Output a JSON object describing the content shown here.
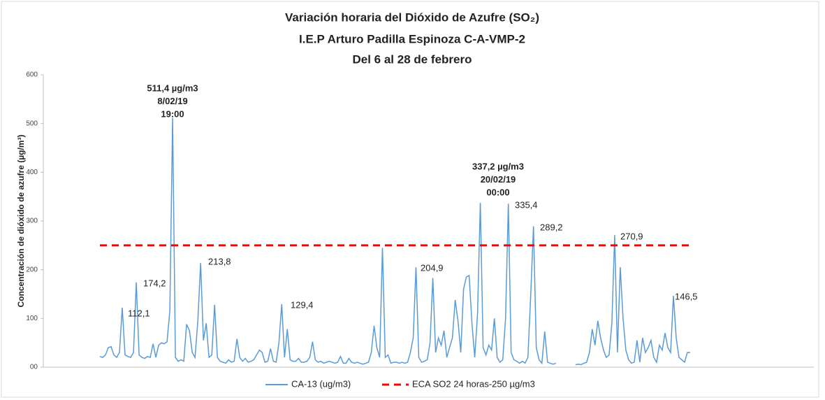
{
  "chart_data": {
    "type": "line",
    "title": [
      "Variación horaria del Dióxido de Azufre (SO₂)",
      "I.E.P Arturo Padilla Espinoza C-A-VMP-2",
      "Del 6 al 28 de febrero"
    ],
    "y_label": "Concentración de dióxido de azufre (µg/m³)",
    "ylim": [
      0,
      600
    ],
    "yticks": [
      {
        "value": 0,
        "label": "00"
      },
      100,
      200,
      300,
      400,
      500,
      600
    ],
    "grid": false,
    "legend": "bottom",
    "series": [
      {
        "name": "CA-13 (ug/m3)",
        "color": "#5b9bd5",
        "values": [
          22,
          20,
          25,
          40,
          42,
          25,
          20,
          30,
          122,
          25,
          22,
          20,
          30,
          174.2,
          25,
          20,
          18,
          22,
          20,
          48,
          20,
          45,
          50,
          48,
          52,
          115,
          511.4,
          20,
          12,
          15,
          12,
          88,
          75,
          30,
          20,
          95,
          213.8,
          55,
          90,
          20,
          25,
          128,
          20,
          12,
          10,
          8,
          15,
          10,
          12,
          58,
          20,
          12,
          18,
          10,
          12,
          15,
          25,
          35,
          30,
          10,
          12,
          38,
          12,
          10,
          50,
          129.4,
          20,
          78,
          15,
          12,
          12,
          18,
          10,
          10,
          12,
          20,
          52,
          15,
          10,
          12,
          8,
          10,
          12,
          10,
          8,
          10,
          22,
          8,
          8,
          18,
          10,
          8,
          10,
          8,
          6,
          8,
          10,
          30,
          85,
          40,
          20,
          245,
          20,
          25,
          8,
          10,
          10,
          8,
          10,
          8,
          10,
          30,
          60,
          204.9,
          20,
          10,
          12,
          15,
          50,
          183,
          30,
          60,
          45,
          75,
          20,
          40,
          60,
          138,
          95,
          30,
          160,
          185,
          188,
          90,
          20,
          110,
          337.2,
          40,
          25,
          45,
          35,
          100,
          20,
          10,
          15,
          100,
          335.4,
          30,
          15,
          12,
          8,
          12,
          8,
          20,
          147,
          289.2,
          40,
          15,
          8,
          73,
          10,
          8,
          6,
          8,
          null,
          null,
          null,
          null,
          null,
          null,
          5,
          6,
          5,
          8,
          10,
          30,
          78,
          45,
          95,
          60,
          35,
          20,
          25,
          90,
          270.9,
          30,
          205,
          100,
          35,
          15,
          8,
          10,
          55,
          10,
          60,
          30,
          40,
          55,
          20,
          10,
          45,
          35,
          70,
          40,
          30,
          146.5,
          60,
          20,
          15,
          10,
          30,
          30
        ]
      }
    ],
    "reference_lines": [
      {
        "name": "ECA SO2 24 horas-250 µg/m3",
        "value": 250,
        "color": "#ff0000"
      }
    ],
    "annotations": [
      {
        "lines": [
          "511,4 µg/m3",
          "8/02/19",
          "19:00"
        ]
      },
      {
        "lines": [
          "337,2 µg/m3",
          "20/02/19",
          "00:00"
        ]
      },
      {
        "lines": [
          "112,1"
        ]
      },
      {
        "lines": [
          "174,2"
        ]
      },
      {
        "lines": [
          "213,8"
        ]
      },
      {
        "lines": [
          "129,4"
        ]
      },
      {
        "lines": [
          "204,9"
        ]
      },
      {
        "lines": [
          "335,4"
        ]
      },
      {
        "lines": [
          "289,2"
        ]
      },
      {
        "lines": [
          "270,9"
        ]
      },
      {
        "lines": [
          "146,5"
        ]
      }
    ]
  }
}
